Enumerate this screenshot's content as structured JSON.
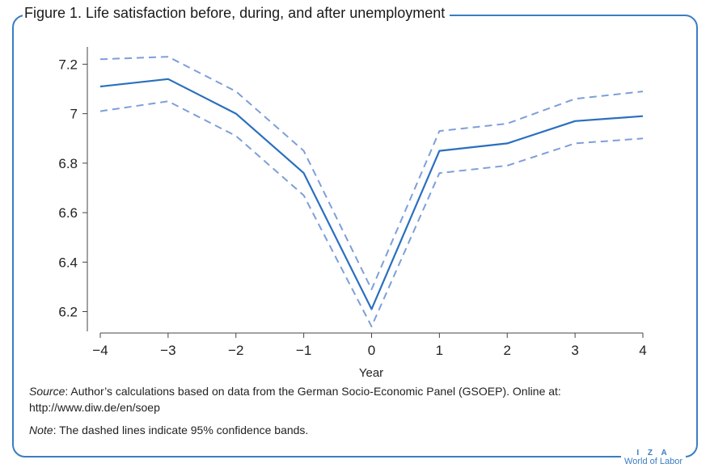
{
  "figure": {
    "title": "Figure 1. Life satisfaction before, during, and after unemployment",
    "source_label": "Source",
    "source_text": ": Author’s calculations based on data from the German Socio-Economic Panel (GSOEP). Online at: http://www.diw.de/en/soep",
    "note_label": "Note",
    "note_text": ": The dashed lines indicate 95% confidence bands.",
    "logo_line1": "I Z A",
    "logo_line2": "World of Labor",
    "colors": {
      "frame": "#3a7dc2",
      "line": "#2a6fbe",
      "band": "#7d9fd9"
    }
  },
  "chart_data": {
    "type": "line",
    "xlabel": "Year",
    "ylabel": "",
    "x": [
      -4,
      -3,
      -2,
      -1,
      0,
      1,
      2,
      3,
      4
    ],
    "x_tick_labels": [
      "−4",
      "−3",
      "−2",
      "−1",
      "0",
      "1",
      "2",
      "3",
      "4"
    ],
    "y_ticks": [
      6.2,
      6.4,
      6.6,
      6.8,
      7,
      7.2
    ],
    "y_tick_labels": [
      "6.2",
      "6.4",
      "6.6",
      "6.8",
      "7",
      "7.2"
    ],
    "ylim": [
      6.12,
      7.27
    ],
    "xlim": [
      -4,
      4
    ],
    "grid": false,
    "series": [
      {
        "role": "estimate",
        "style": "solid",
        "values": [
          7.11,
          7.14,
          7.0,
          6.76,
          6.21,
          6.85,
          6.88,
          6.97,
          6.99
        ]
      },
      {
        "role": "upper",
        "style": "dashed",
        "values": [
          7.22,
          7.23,
          7.09,
          6.85,
          6.29,
          6.93,
          6.96,
          7.06,
          7.09
        ]
      },
      {
        "role": "lower",
        "style": "dashed",
        "values": [
          7.01,
          7.05,
          6.91,
          6.67,
          6.14,
          6.76,
          6.79,
          6.88,
          6.9
        ]
      }
    ]
  }
}
